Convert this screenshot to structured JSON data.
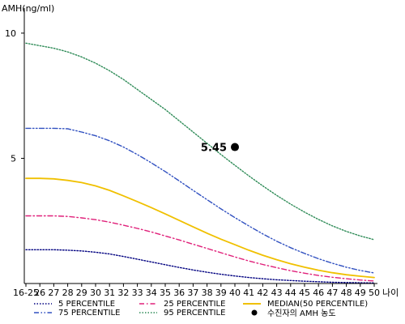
{
  "chart_data": {
    "type": "line",
    "ylabel": "AMH(ng/ml)",
    "xlabel": "나이",
    "ylim": [
      0,
      11
    ],
    "yticks": [
      5,
      10
    ],
    "x_tick_labels": [
      "16-25",
      "26",
      "27",
      "28",
      "29",
      "30",
      "31",
      "32",
      "33",
      "34",
      "35",
      "36",
      "37",
      "38",
      "39",
      "40",
      "41",
      "42",
      "43",
      "44",
      "45",
      "46",
      "47",
      "48",
      "49",
      "50"
    ],
    "grid": false,
    "legend_position": "bottom",
    "series": [
      {
        "name": "5 PERCENTILE",
        "color": "#000080",
        "dash": "dotted",
        "values": [
          1.35,
          1.35,
          1.35,
          1.33,
          1.3,
          1.25,
          1.18,
          1.08,
          0.97,
          0.86,
          0.75,
          0.64,
          0.54,
          0.45,
          0.37,
          0.3,
          0.24,
          0.19,
          0.15,
          0.12,
          0.09,
          0.07,
          0.05,
          0.04,
          0.03,
          0.02
        ]
      },
      {
        "name": "25 PERCENTILE",
        "color": "#e0207a",
        "dash": "dashdot",
        "values": [
          2.7,
          2.7,
          2.7,
          2.68,
          2.62,
          2.55,
          2.45,
          2.33,
          2.2,
          2.06,
          1.9,
          1.74,
          1.57,
          1.4,
          1.23,
          1.06,
          0.9,
          0.76,
          0.63,
          0.51,
          0.41,
          0.32,
          0.25,
          0.19,
          0.14,
          0.1
        ]
      },
      {
        "name": "MEDIAN(50 PERCENTILE)",
        "color": "#f0c000",
        "dash": "solid",
        "values": [
          4.2,
          4.2,
          4.18,
          4.12,
          4.03,
          3.9,
          3.72,
          3.5,
          3.27,
          3.03,
          2.78,
          2.52,
          2.26,
          2.01,
          1.77,
          1.55,
          1.33,
          1.13,
          0.95,
          0.79,
          0.65,
          0.53,
          0.43,
          0.35,
          0.29,
          0.24
        ]
      },
      {
        "name": "75 PERCENTILE",
        "color": "#3050c0",
        "dash": "dashdotdot",
        "values": [
          6.2,
          6.2,
          6.2,
          6.18,
          6.05,
          5.9,
          5.7,
          5.45,
          5.15,
          4.82,
          4.47,
          4.1,
          3.72,
          3.35,
          2.98,
          2.63,
          2.3,
          1.98,
          1.69,
          1.43,
          1.2,
          0.99,
          0.81,
          0.65,
          0.52,
          0.42
        ]
      },
      {
        "name": "95 PERCENTILE",
        "color": "#2e8b57",
        "dash": "dotted",
        "values": [
          9.6,
          9.5,
          9.4,
          9.25,
          9.05,
          8.8,
          8.5,
          8.15,
          7.75,
          7.35,
          6.95,
          6.5,
          6.05,
          5.6,
          5.15,
          4.72,
          4.3,
          3.9,
          3.52,
          3.17,
          2.85,
          2.56,
          2.3,
          2.08,
          1.9,
          1.75
        ]
      }
    ],
    "patient_point": {
      "name": "수진자의 AMH 농도",
      "x": "40",
      "value": 5.45,
      "label": "5.45"
    }
  }
}
